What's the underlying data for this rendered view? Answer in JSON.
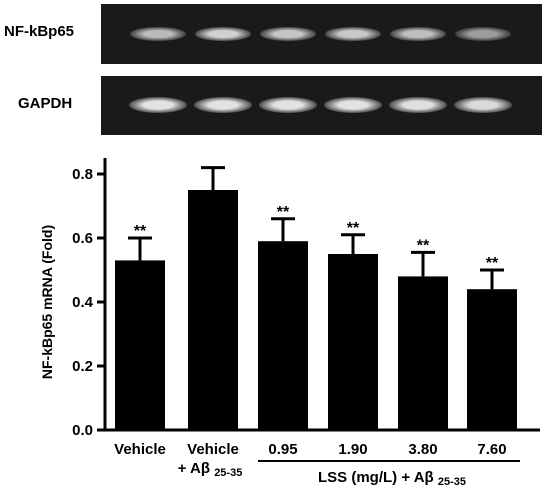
{
  "blots": [
    {
      "label": "NF-kBp65",
      "intensity": [
        0.72,
        0.85,
        0.78,
        0.8,
        0.74,
        0.55
      ]
    },
    {
      "label": "GAPDH",
      "intensity": [
        0.95,
        0.95,
        0.95,
        0.95,
        0.93,
        0.9
      ]
    }
  ],
  "chart_data": {
    "type": "bar",
    "categories": [
      "Vehicle",
      "Vehicle + Aβ 25-35",
      "0.95",
      "1.90",
      "3.80",
      "7.60"
    ],
    "category_lines": [
      [
        "Vehicle",
        ""
      ],
      [
        "Vehicle",
        "+ Aβ 25-35"
      ],
      [
        "0.95",
        ""
      ],
      [
        "1.90",
        ""
      ],
      [
        "3.80",
        ""
      ],
      [
        "7.60",
        ""
      ]
    ],
    "values": [
      0.53,
      0.75,
      0.59,
      0.55,
      0.48,
      0.44
    ],
    "errors": [
      0.07,
      0.07,
      0.07,
      0.06,
      0.075,
      0.06
    ],
    "significance": [
      "**",
      "",
      "**",
      "**",
      "**",
      "**"
    ],
    "ylabel": "NF-kBp65 mRNA (Fold)",
    "ylim": [
      0,
      0.85
    ],
    "yticks": [
      "0.0",
      "0.2",
      "0.4",
      "0.6",
      "0.8"
    ],
    "group_label": "LSS (mg/L) + Aβ 25-35",
    "bar_color": "#000000"
  }
}
